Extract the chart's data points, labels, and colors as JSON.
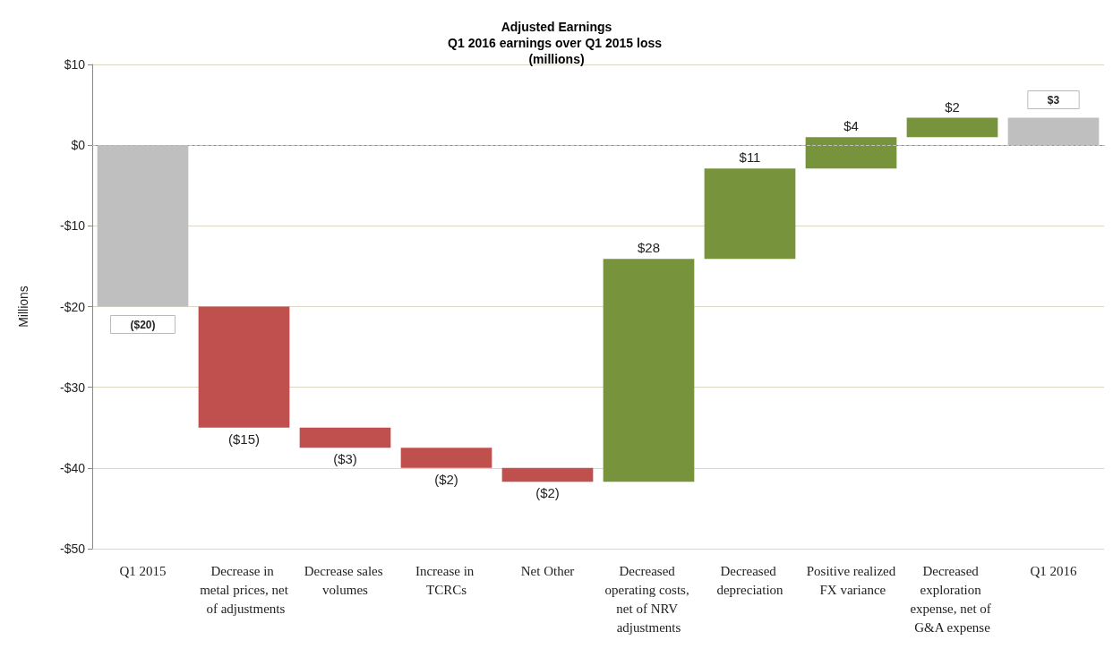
{
  "chart_data": {
    "type": "bar",
    "title": "Adjusted Earnings",
    "subtitle": "Q1 2016 earnings over Q1 2015 loss (millions)",
    "ylabel": "Millions",
    "categories": [
      "Q1 2015",
      "Decrease in metal prices, net of adjustments",
      "Decrease sales volumes",
      "Increase in TCRCs",
      "Net Other",
      "Decreased operating costs, net of NRV adjustments",
      "Decreased depreciation",
      "Positive realized FX variance",
      "Decreased exploration expense, net of G&A expense",
      "Q1 2016"
    ],
    "values": [
      -20,
      -15,
      -2.5,
      -2.5,
      -1.7,
      27.6,
      11.2,
      3.9,
      2.4,
      3.4
    ],
    "base": [
      0,
      -20,
      -35,
      -37.5,
      -40,
      -41.7,
      -14.1,
      -2.9,
      1.0,
      0
    ],
    "colors": [
      "#bfbfbf",
      "#c0504d",
      "#c0504d",
      "#c0504d",
      "#c0504d",
      "#77933c",
      "#77933c",
      "#77933c",
      "#77933c",
      "#bfbfbf"
    ],
    "value_labels": [
      "($20)",
      "($15)",
      "($3)",
      "($2)",
      "($2)",
      "$28",
      "$11",
      "$4",
      "$2",
      "$3"
    ],
    "ylim": [
      -50,
      10
    ],
    "yticks": [
      {
        "value": 10,
        "label": "$10"
      },
      {
        "value": 0,
        "label": "$0"
      },
      {
        "value": -10,
        "label": "-$10"
      },
      {
        "value": -20,
        "label": "-$20"
      },
      {
        "value": -30,
        "label": "-$30"
      },
      {
        "value": -40,
        "label": "-$40"
      },
      {
        "value": -50,
        "label": "-$50"
      }
    ],
    "grid": "y",
    "ref_lines": [
      {
        "axis": "y",
        "value": 0,
        "color": "#bfbfbf",
        "line_style": "dashed"
      }
    ]
  }
}
